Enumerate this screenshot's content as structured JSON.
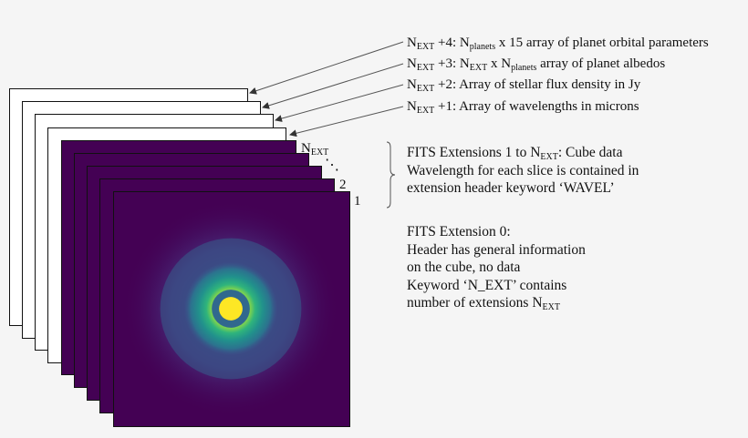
{
  "extension_labels": {
    "ext4": {
      "n": "N",
      "sub1": "EXT",
      "mid": " +4: N",
      "sub2": "planets",
      "tail": "  x 15 array of planet orbital parameters"
    },
    "ext3": {
      "n": "N",
      "sub1": "EXT",
      "mid": " +3: N",
      "sub2": "EXT",
      "mid2": "  x N",
      "sub3": "planets",
      "tail": " array of planet albedos"
    },
    "ext2": {
      "n": "N",
      "sub1": "EXT",
      "tail": " +2: Array of stellar flux density in Jy"
    },
    "ext1": {
      "n": "N",
      "sub1": "EXT",
      "tail": " +1: Array of wavelengths in microns"
    }
  },
  "slice_labels": {
    "next": {
      "n": "N",
      "sub": "EXT"
    },
    "dots": "⋱",
    "two": "2",
    "one": "1"
  },
  "cube_note": {
    "line1_pre": "FITS Extensions 1 to N",
    "line1_sub": "EXT",
    "line1_post": ": Cube data",
    "line2": "Wavelength for each slice is contained in",
    "line3": "extension header keyword ‘WAVEL’"
  },
  "ext0_note": {
    "line1": "FITS Extension 0:",
    "line2": "Header has general information",
    "line3": "on the cube, no data",
    "line4": "Keyword ‘N_EXT’ contains",
    "line5_pre": "number of extensions N",
    "line5_sub": "EXT"
  },
  "colors": {
    "background": "#f5f5f5",
    "slice_purple": "#440154",
    "ring_teal": "#21918c",
    "ring_green": "#35b779",
    "core_yellow": "#fde725"
  }
}
